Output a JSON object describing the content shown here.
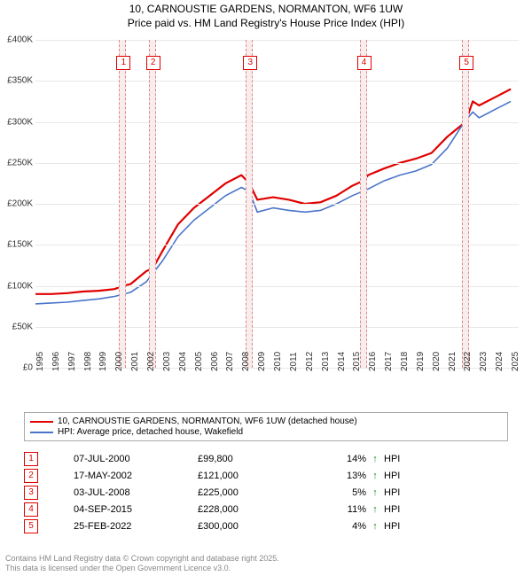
{
  "title": {
    "line1": "10, CARNOUSTIE GARDENS, NORMANTON, WF6 1UW",
    "line2": "Price paid vs. HM Land Registry's House Price Index (HPI)"
  },
  "chart": {
    "type": "line",
    "background_color": "#ffffff",
    "grid_color": "#e8e8e8",
    "x": {
      "min": 1995,
      "max": 2025.5,
      "ticks": [
        1995,
        1996,
        1997,
        1998,
        1999,
        2000,
        2001,
        2002,
        2003,
        2004,
        2005,
        2006,
        2007,
        2008,
        2009,
        2010,
        2011,
        2012,
        2013,
        2014,
        2015,
        2016,
        2017,
        2018,
        2019,
        2020,
        2021,
        2022,
        2023,
        2024,
        2025
      ]
    },
    "y": {
      "min": 0,
      "max": 400000,
      "tick_step": 50000,
      "labels": [
        "£0",
        "£50K",
        "£100K",
        "£150K",
        "£200K",
        "£250K",
        "£300K",
        "£350K",
        "£400K"
      ]
    },
    "marker_band": {
      "fill": "#f8ecec",
      "border": "#dd8888"
    },
    "series": [
      {
        "name": "10, CARNOUSTIE GARDENS, NORMANTON, WF6 1UW (detached house)",
        "color": "#e00000",
        "line_width": 2.2,
        "xy": [
          [
            1995,
            90000
          ],
          [
            1996,
            90000
          ],
          [
            1997,
            91000
          ],
          [
            1998,
            93000
          ],
          [
            1999,
            94000
          ],
          [
            2000,
            96000
          ],
          [
            2000.5,
            99800
          ],
          [
            2001,
            102000
          ],
          [
            2002,
            118000
          ],
          [
            2002.4,
            121000
          ],
          [
            2003,
            142000
          ],
          [
            2004,
            175000
          ],
          [
            2005,
            195000
          ],
          [
            2006,
            210000
          ],
          [
            2007,
            225000
          ],
          [
            2008,
            235000
          ],
          [
            2008.5,
            225000
          ],
          [
            2009,
            205000
          ],
          [
            2010,
            208000
          ],
          [
            2011,
            205000
          ],
          [
            2012,
            200000
          ],
          [
            2013,
            202000
          ],
          [
            2014,
            210000
          ],
          [
            2015,
            222000
          ],
          [
            2015.68,
            228000
          ],
          [
            2016,
            235000
          ],
          [
            2017,
            243000
          ],
          [
            2018,
            250000
          ],
          [
            2019,
            255000
          ],
          [
            2020,
            262000
          ],
          [
            2021,
            282000
          ],
          [
            2022.15,
            300000
          ],
          [
            2022.6,
            325000
          ],
          [
            2023,
            320000
          ],
          [
            2024,
            330000
          ],
          [
            2025,
            340000
          ]
        ]
      },
      {
        "name": "HPI: Average price, detached house, Wakefield",
        "color": "#4a74c9",
        "line_width": 1.6,
        "xy": [
          [
            1995,
            78000
          ],
          [
            1996,
            79000
          ],
          [
            1997,
            80000
          ],
          [
            1998,
            82000
          ],
          [
            1999,
            84000
          ],
          [
            2000,
            87000
          ],
          [
            2001,
            92000
          ],
          [
            2002,
            105000
          ],
          [
            2003,
            130000
          ],
          [
            2004,
            160000
          ],
          [
            2005,
            180000
          ],
          [
            2006,
            195000
          ],
          [
            2007,
            210000
          ],
          [
            2008,
            220000
          ],
          [
            2008.5,
            215000
          ],
          [
            2009,
            190000
          ],
          [
            2010,
            195000
          ],
          [
            2011,
            192000
          ],
          [
            2012,
            190000
          ],
          [
            2013,
            192000
          ],
          [
            2014,
            200000
          ],
          [
            2015,
            210000
          ],
          [
            2016,
            218000
          ],
          [
            2017,
            228000
          ],
          [
            2018,
            235000
          ],
          [
            2019,
            240000
          ],
          [
            2020,
            248000
          ],
          [
            2021,
            268000
          ],
          [
            2022,
            298000
          ],
          [
            2022.6,
            312000
          ],
          [
            2023,
            305000
          ],
          [
            2024,
            315000
          ],
          [
            2025,
            325000
          ]
        ]
      }
    ],
    "markers": [
      {
        "num": "1",
        "x": 2000.51
      },
      {
        "num": "2",
        "x": 2002.37
      },
      {
        "num": "3",
        "x": 2008.5
      },
      {
        "num": "4",
        "x": 2015.68
      },
      {
        "num": "5",
        "x": 2022.15
      }
    ]
  },
  "legend": {
    "items": [
      {
        "color": "#e00000",
        "label": "10, CARNOUSTIE GARDENS, NORMANTON, WF6 1UW (detached house)"
      },
      {
        "color": "#4a74c9",
        "label": "HPI: Average price, detached house, Wakefield"
      }
    ]
  },
  "events": {
    "arrow_color": "#1a8f1a",
    "rows": [
      {
        "num": "1",
        "date": "07-JUL-2000",
        "price": "£99,800",
        "diff": "14%",
        "arrow": "↑",
        "tag": "HPI"
      },
      {
        "num": "2",
        "date": "17-MAY-2002",
        "price": "£121,000",
        "diff": "13%",
        "arrow": "↑",
        "tag": "HPI"
      },
      {
        "num": "3",
        "date": "03-JUL-2008",
        "price": "£225,000",
        "diff": "5%",
        "arrow": "↑",
        "tag": "HPI"
      },
      {
        "num": "4",
        "date": "04-SEP-2015",
        "price": "£228,000",
        "diff": "11%",
        "arrow": "↑",
        "tag": "HPI"
      },
      {
        "num": "5",
        "date": "25-FEB-2022",
        "price": "£300,000",
        "diff": "4%",
        "arrow": "↑",
        "tag": "HPI"
      }
    ]
  },
  "footer": {
    "line1": "Contains HM Land Registry data © Crown copyright and database right 2025.",
    "line2": "This data is licensed under the Open Government Licence v3.0."
  }
}
